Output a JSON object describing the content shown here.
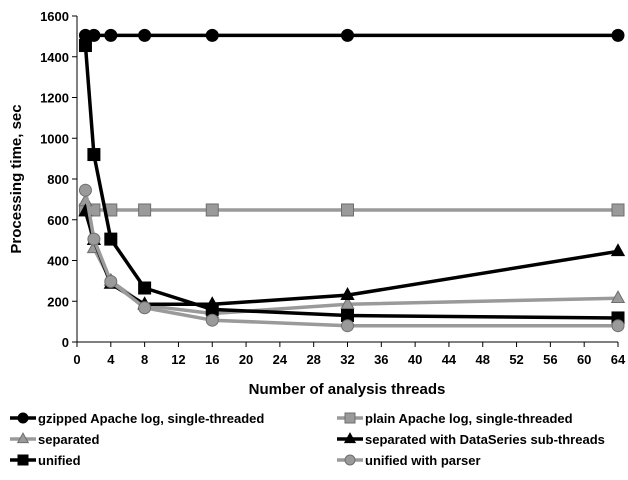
{
  "chart_data": {
    "type": "line",
    "xlabel": "Number of analysis threads",
    "ylabel": "Processing time, sec",
    "xlim": [
      0,
      64
    ],
    "ylim": [
      0,
      1600
    ],
    "xticks": [
      0,
      4,
      8,
      12,
      16,
      20,
      24,
      28,
      32,
      36,
      40,
      44,
      48,
      52,
      56,
      60,
      64
    ],
    "yticks": [
      0,
      200,
      400,
      600,
      800,
      1000,
      1200,
      1400,
      1600
    ],
    "grid": false,
    "legend_position": "bottom",
    "series": [
      {
        "name": "gzipped Apache log, single-threaded",
        "color": "#000000",
        "marker": "circle",
        "x": [
          1,
          2,
          4,
          8,
          16,
          32,
          64
        ],
        "y": [
          1505,
          1505,
          1505,
          1505,
          1505,
          1505,
          1505
        ]
      },
      {
        "name": "plain Apache log, single-threaded",
        "color": "#9a9a9a",
        "marker": "square",
        "x": [
          1,
          2,
          4,
          8,
          16,
          32,
          64
        ],
        "y": [
          648,
          648,
          648,
          648,
          648,
          648,
          648
        ]
      },
      {
        "name": "separated",
        "color": "#9a9a9a",
        "marker": "triangle",
        "x": [
          1,
          2,
          4,
          8,
          16,
          32,
          64
        ],
        "y": [
          690,
          460,
          300,
          180,
          140,
          185,
          215
        ]
      },
      {
        "name": "separated with DataSeries sub-threads",
        "color": "#000000",
        "marker": "triangle",
        "x": [
          1,
          2,
          4,
          8,
          16,
          32,
          64
        ],
        "y": [
          640,
          500,
          285,
          185,
          185,
          230,
          445
        ]
      },
      {
        "name": "unified",
        "color": "#000000",
        "marker": "square",
        "x": [
          1,
          2,
          4,
          8,
          16,
          32,
          64
        ],
        "y": [
          1455,
          920,
          505,
          265,
          160,
          130,
          118
        ]
      },
      {
        "name": "unified with parser",
        "color": "#9a9a9a",
        "marker": "circle",
        "x": [
          1,
          2,
          4,
          8,
          16,
          32,
          64
        ],
        "y": [
          745,
          505,
          297,
          168,
          107,
          80,
          80
        ]
      }
    ]
  }
}
